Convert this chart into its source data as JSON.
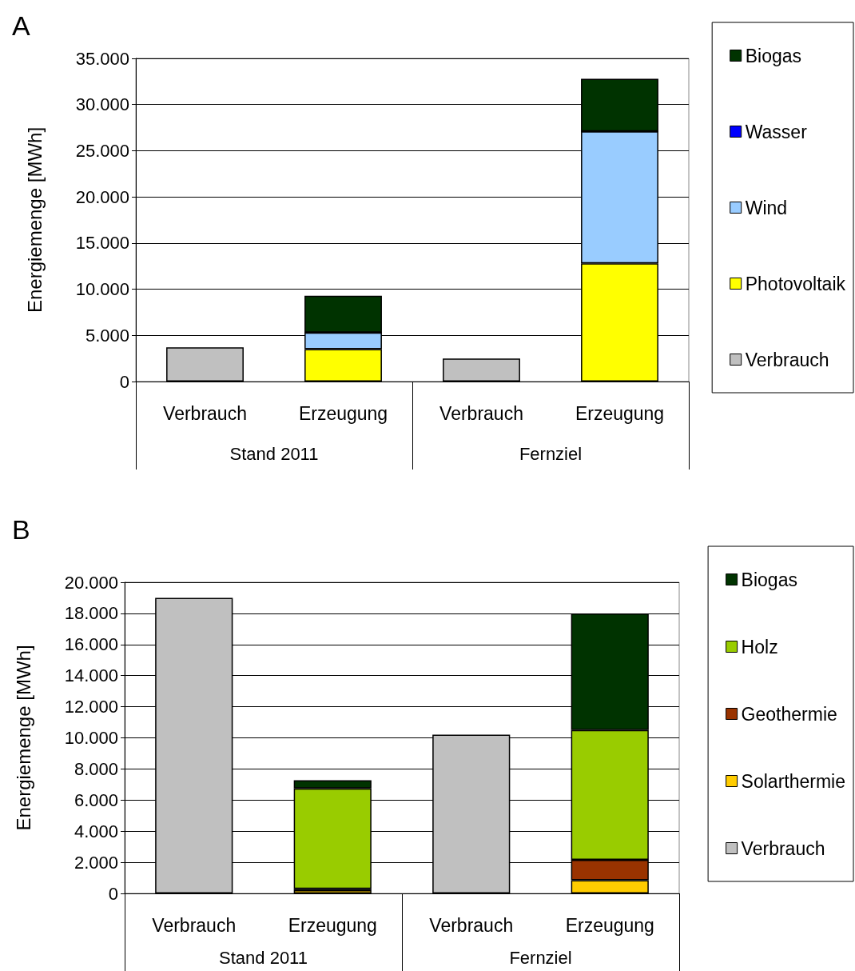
{
  "chart_data": [
    {
      "type": "bar",
      "title": "A",
      "ylabel": "Energiemenge [MWh]",
      "stacked": true,
      "categories": [
        "Verbrauch",
        "Erzeugung",
        "Verbrauch",
        "Erzeugung"
      ],
      "annotations": [
        "Stand 2011",
        "Fernziel"
      ],
      "series": [
        {
          "name": "Verbrauch",
          "color": "#c0c0c0",
          "values": [
            3700,
            null,
            2500,
            null
          ]
        },
        {
          "name": "Photovoltaik",
          "color": "#ffff00",
          "values": [
            null,
            3500,
            null,
            12800
          ]
        },
        {
          "name": "Wind",
          "color": "#99ccff",
          "values": [
            null,
            1800,
            null,
            14300
          ]
        },
        {
          "name": "Wasser",
          "color": "#0000ff",
          "values": [
            null,
            0,
            null,
            0
          ]
        },
        {
          "name": "Biogas",
          "color": "#003300",
          "values": [
            null,
            4000,
            null,
            5700
          ]
        }
      ],
      "ylim": [
        0,
        35000
      ],
      "yticks": [
        {
          "value": 0,
          "label": "0"
        },
        {
          "value": 5000,
          "label": "5.000"
        },
        {
          "value": 10000,
          "label": "10.000"
        },
        {
          "value": 15000,
          "label": "15.000"
        },
        {
          "value": 20000,
          "label": "20.000"
        },
        {
          "value": 25000,
          "label": "25.000"
        },
        {
          "value": 30000,
          "label": "30.000"
        },
        {
          "value": 35000,
          "label": "35.000"
        }
      ],
      "grid": "y",
      "legend": "right"
    },
    {
      "type": "bar",
      "title": "B",
      "ylabel": "Energiemenge [MWh]",
      "stacked": true,
      "categories": [
        "Verbrauch",
        "Erzeugung",
        "Verbrauch",
        "Erzeugung"
      ],
      "annotations": [
        "Stand 2011",
        "Fernziel"
      ],
      "series": [
        {
          "name": "Verbrauch",
          "color": "#c0c0c0",
          "values": [
            19000,
            null,
            10200,
            null
          ]
        },
        {
          "name": "Solarthermie",
          "color": "#ffcc00",
          "values": [
            null,
            200,
            null,
            850
          ]
        },
        {
          "name": "Geothermie",
          "color": "#993300",
          "values": [
            null,
            100,
            null,
            1310
          ]
        },
        {
          "name": "Holz",
          "color": "#99cc00",
          "values": [
            null,
            6450,
            null,
            8340
          ]
        },
        {
          "name": "Biogas",
          "color": "#003300",
          "values": [
            null,
            520,
            null,
            7500
          ]
        }
      ],
      "ylim": [
        0,
        20000
      ],
      "yticks": [
        {
          "value": 0,
          "label": "0"
        },
        {
          "value": 2000,
          "label": "2.000"
        },
        {
          "value": 4000,
          "label": "4.000"
        },
        {
          "value": 6000,
          "label": "6.000"
        },
        {
          "value": 8000,
          "label": "8.000"
        },
        {
          "value": 10000,
          "label": "10.000"
        },
        {
          "value": 12000,
          "label": "12.000"
        },
        {
          "value": 14000,
          "label": "14.000"
        },
        {
          "value": 16000,
          "label": "16.000"
        },
        {
          "value": 18000,
          "label": "18.000"
        },
        {
          "value": 20000,
          "label": "20.000"
        }
      ],
      "grid": "y",
      "legend": "right"
    }
  ]
}
